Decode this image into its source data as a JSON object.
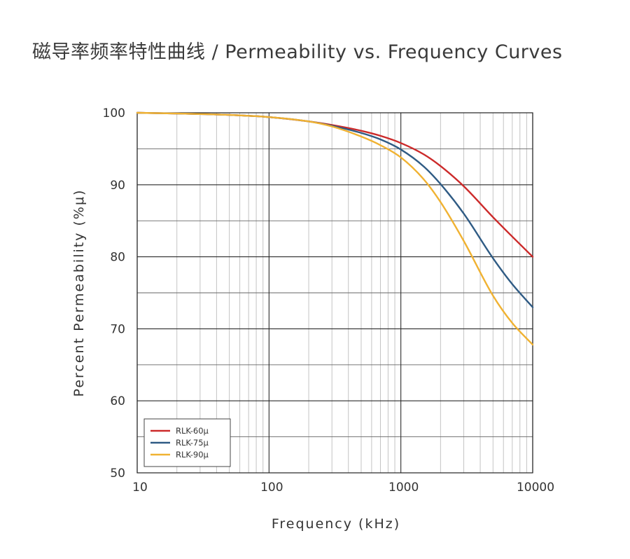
{
  "chart_data": {
    "type": "line",
    "title": "磁导率频率特性曲线 / Permeability vs. Frequency Curves",
    "xlabel": "Frequency (kHz)",
    "ylabel": "Percent Permeability (%μ)",
    "xscale": "log",
    "xlim": [
      10,
      10000
    ],
    "ylim": [
      50,
      100
    ],
    "x_ticks": [
      "10",
      "100",
      "1000",
      "10000"
    ],
    "y_ticks": [
      "50",
      "60",
      "70",
      "80",
      "90",
      "100"
    ],
    "grid": true,
    "legend_position": "bottom-left",
    "series": [
      {
        "name": "RLK-60μ",
        "color": "#cc2a2a",
        "x": [
          10,
          20,
          50,
          100,
          200,
          300,
          500,
          700,
          1000,
          1500,
          2000,
          3000,
          5000,
          7000,
          10000
        ],
        "y": [
          100,
          99.9,
          99.7,
          99.4,
          98.8,
          98.3,
          97.5,
          96.8,
          95.8,
          94.2,
          92.6,
          89.8,
          85.5,
          82.8,
          80
        ]
      },
      {
        "name": "RLK-75μ",
        "color": "#2f5b84",
        "x": [
          10,
          20,
          50,
          100,
          200,
          300,
          500,
          700,
          1000,
          1500,
          2000,
          3000,
          5000,
          7000,
          10000
        ],
        "y": [
          100,
          99.9,
          99.7,
          99.4,
          98.8,
          98.2,
          97.2,
          96.3,
          94.9,
          92.5,
          90.1,
          86,
          79.8,
          76.2,
          73
        ]
      },
      {
        "name": "RLK-90μ",
        "color": "#f0b232",
        "x": [
          10,
          20,
          50,
          100,
          200,
          300,
          500,
          700,
          1000,
          1500,
          2000,
          3000,
          5000,
          7000,
          10000
        ],
        "y": [
          100,
          99.9,
          99.7,
          99.4,
          98.8,
          98.1,
          96.7,
          95.5,
          93.8,
          90.7,
          87.6,
          82.2,
          74.6,
          70.8,
          67.8
        ]
      }
    ]
  }
}
